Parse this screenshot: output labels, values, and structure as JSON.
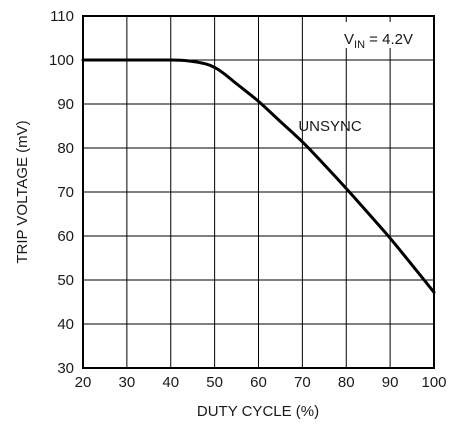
{
  "chart_data": {
    "type": "line",
    "xlabel": "DUTY CYCLE (%)",
    "ylabel": "TRIP VOLTAGE (mV)",
    "xlim": [
      20,
      100
    ],
    "ylim": [
      30,
      110
    ],
    "x_ticks": [
      "20",
      "30",
      "40",
      "50",
      "60",
      "70",
      "80",
      "90",
      "100"
    ],
    "y_ticks": [
      "30",
      "40",
      "50",
      "60",
      "70",
      "80",
      "90",
      "100",
      "110"
    ],
    "grid": true,
    "series": [
      {
        "name": "UNSYNC",
        "x": [
          20,
          30,
          40,
          44,
          48,
          50,
          52,
          55,
          60,
          65,
          70,
          75,
          80,
          85,
          90,
          95,
          100
        ],
        "y": [
          100,
          100,
          100,
          99.8,
          99.1,
          98.3,
          97.0,
          94.6,
          90.6,
          86.0,
          81.4,
          76.2,
          70.8,
          65.2,
          59.5,
          53.4,
          47.2
        ]
      }
    ],
    "annotations": {
      "series_label": "UNSYNC",
      "condition_prefix": "V",
      "condition_sub": "IN",
      "condition_suffix": " = 4.2V"
    },
    "colors": {
      "line": "#000000",
      "grid": "#000000",
      "background": "#ffffff"
    }
  }
}
